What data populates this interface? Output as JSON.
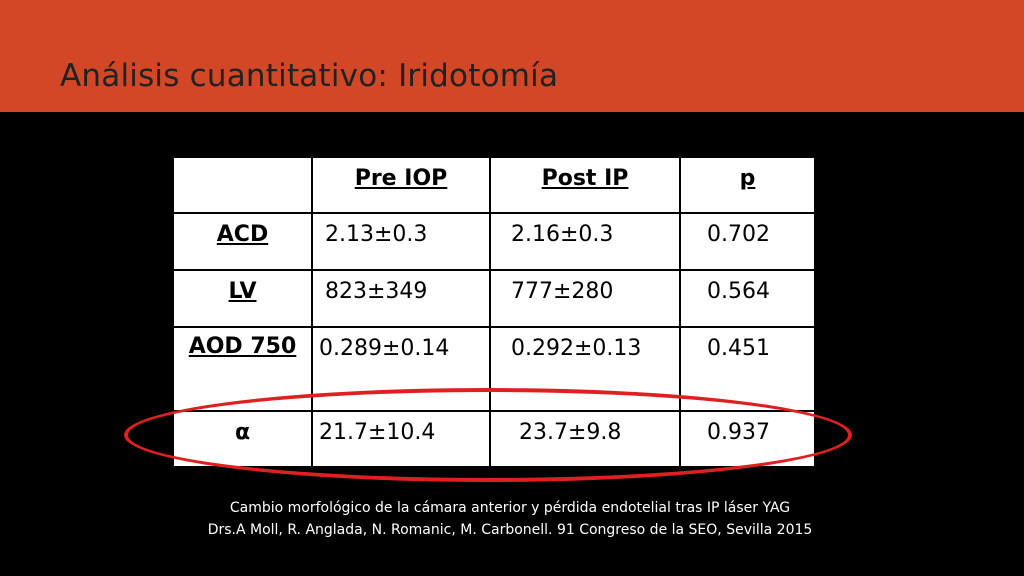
{
  "title": "Análisis cuantitativo: Iridotomía",
  "colors": {
    "title_bar": "#D24726",
    "background": "#000000",
    "highlight": "#E02020"
  },
  "table": {
    "headers": [
      "",
      "Pre IOP",
      "Post IP",
      "p"
    ],
    "rows": [
      {
        "label": "ACD",
        "pre": "2.13±0.3",
        "post": "2.16±0.3",
        "p": "0.702"
      },
      {
        "label": "LV",
        "pre": "823±349",
        "post": "777±280",
        "p": "0.564"
      },
      {
        "label": "AOD 750",
        "pre": "0.289±0.14",
        "post": "0.292±0.13",
        "p": "0.451"
      },
      {
        "label": "α",
        "pre": "21.7±10.4",
        "post": "23.7±9.8",
        "p": "0.937"
      }
    ]
  },
  "caption": {
    "line1": "Cambio morfológico de la cámara anterior y pérdida endotelial tras IP láser YAG",
    "line2": "Drs.A  Moll, R. Anglada, N. Romanic, M. Carbonell. 91 Congreso de la SEO, Sevilla 2015"
  }
}
